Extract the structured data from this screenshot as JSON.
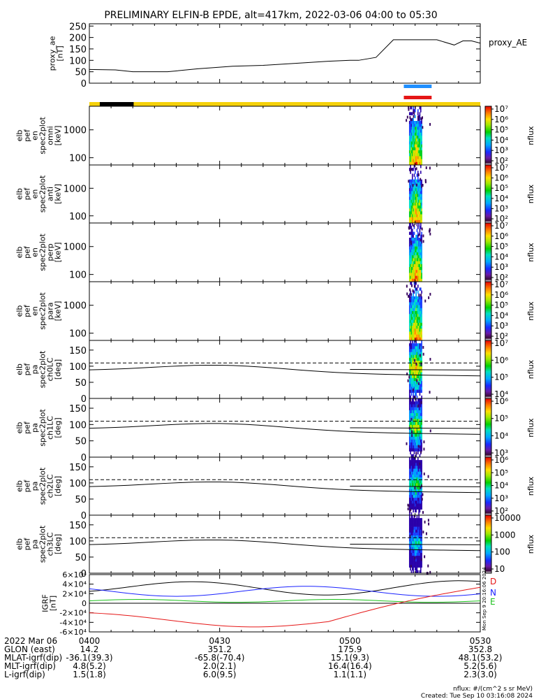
{
  "title": "PRELIMINARY ELFIN-B EPDE, alt=417km, 2022-03-06 04:00 to 05:30",
  "colors": {
    "sun_bar": "#f5d10a",
    "shadow_bar": "#000000",
    "blue_marker": "#1f8fff",
    "red_marker": "#e51616",
    "D": "#e51616",
    "N": "#1a22ff",
    "E": "#1cc11c"
  },
  "chart_data": [
    {
      "type": "line",
      "panel": "proxy_ae",
      "ylabel_lines": [
        "proxy_ae",
        "[nT]"
      ],
      "legend": "proxy_AE",
      "ylim": [
        0,
        260
      ],
      "yticks": [
        "0",
        "50",
        "100",
        "150",
        "200",
        "250"
      ],
      "series": [
        {
          "x": [
            0,
            6,
            10,
            18,
            25,
            30,
            33,
            40,
            50,
            55,
            60,
            62,
            66,
            70,
            72,
            80,
            84,
            86,
            88,
            90
          ],
          "y": [
            60,
            58,
            50,
            50,
            63,
            70,
            74,
            78,
            90,
            96,
            100,
            100,
            113,
            190,
            190,
            190,
            167,
            185,
            185,
            175
          ]
        }
      ]
    },
    {
      "type": "heatmap",
      "panel": "omni",
      "ylabel_lines": [
        "elb",
        "pef",
        "en",
        "spec2plot",
        "omni",
        "[keV]"
      ],
      "yticks": [
        "100",
        "1000"
      ],
      "cbar_ticks": [
        "10²",
        "10³",
        "10⁴",
        "10⁵",
        "10⁶",
        "10⁷"
      ],
      "cbar_label": "nflux"
    },
    {
      "type": "heatmap",
      "panel": "anti",
      "ylabel_lines": [
        "elb",
        "pef",
        "en",
        "spec2plot",
        "anti",
        "[keV]"
      ],
      "yticks": [
        "100",
        "1000"
      ],
      "cbar_ticks": [
        "10²",
        "10³",
        "10⁴",
        "10⁵",
        "10⁶",
        "10⁷"
      ],
      "cbar_label": "nflux"
    },
    {
      "type": "heatmap",
      "panel": "perp",
      "ylabel_lines": [
        "elb",
        "pef",
        "en",
        "spec2plot",
        "perp",
        "[keV]"
      ],
      "yticks": [
        "100",
        "1000"
      ],
      "cbar_ticks": [
        "10²",
        "10³",
        "10⁴",
        "10⁵",
        "10⁶",
        "10⁷"
      ],
      "cbar_label": "nflux"
    },
    {
      "type": "heatmap",
      "panel": "para",
      "ylabel_lines": [
        "elb",
        "pef",
        "en",
        "spec2plot",
        "para",
        "[keV]"
      ],
      "yticks": [
        "100",
        "1000"
      ],
      "cbar_ticks": [
        "10²",
        "10³",
        "10⁴",
        "10⁵",
        "10⁶",
        "10⁷"
      ],
      "cbar_label": "nflux"
    },
    {
      "type": "heatmap",
      "panel": "ch0LC",
      "ylabel_lines": [
        "elb",
        "pef",
        "pa",
        "spec2plot",
        "ch0LC",
        "[deg]"
      ],
      "yticks": [
        "0",
        "50",
        "100",
        "150"
      ],
      "cbar_ticks": [
        "10⁴",
        "10⁵",
        "10⁶",
        "10⁷"
      ],
      "cbar_label": "nflux"
    },
    {
      "type": "heatmap",
      "panel": "ch1LC",
      "ylabel_lines": [
        "elb",
        "pef",
        "pa",
        "spec2plot",
        "ch1LC",
        "[deg]"
      ],
      "yticks": [
        "0",
        "50",
        "100",
        "150"
      ],
      "cbar_ticks": [
        "10³",
        "10⁴",
        "10⁵",
        "10⁶"
      ],
      "cbar_label": "nflux"
    },
    {
      "type": "heatmap",
      "panel": "ch2LC",
      "ylabel_lines": [
        "elb",
        "pef",
        "pa",
        "spec2plot",
        "ch2LC",
        "[deg]"
      ],
      "yticks": [
        "0",
        "50",
        "100",
        "150"
      ],
      "cbar_ticks": [
        "10²",
        "10³",
        "10⁴",
        "10⁵",
        "10⁶"
      ],
      "cbar_label": "nflux"
    },
    {
      "type": "heatmap",
      "panel": "ch3LC",
      "ylabel_lines": [
        "elb",
        "pef",
        "pa",
        "spec2plot",
        "ch3LC",
        "[deg]"
      ],
      "yticks": [
        "0",
        "50",
        "100",
        "150"
      ],
      "cbar_ticks": [
        "10",
        "100",
        "1000",
        "10000"
      ],
      "cbar_label": "nflux"
    },
    {
      "type": "line",
      "panel": "IGRF",
      "ylabel_lines": [
        "IGRF",
        "[nT]"
      ],
      "yticks": [
        "-6×10⁴",
        "-4×10⁴",
        "-2×10⁴",
        "0",
        "2×10⁴",
        "4×10⁴",
        "6×10⁴"
      ],
      "legend": [
        "D",
        "N",
        "E"
      ],
      "side_note": "Mon Sep 9 20:16:06 2024"
    }
  ],
  "footer": {
    "rows": [
      [
        "2022 Mar 06",
        "0400",
        "0430",
        "0500",
        "0530"
      ],
      [
        "GLON (east)",
        "14.2",
        "351.2",
        "175.9",
        "352.8"
      ],
      [
        "MLAT-igrf(dip)",
        "-36.1(39.3)",
        "-65.8(-70.4)",
        "15.1(9.3)",
        "48.1(53.2)"
      ],
      [
        "MLT-igrf(dip)",
        "4.8(5.2)",
        "2.0(2.1)",
        "16.4(16.4)",
        "5.2(5.6)"
      ],
      [
        "L-igrf(dip)",
        "1.5(1.8)",
        "6.0(9.5)",
        "1.1(1.1)",
        "2.3(3.0)"
      ]
    ],
    "units": "nflux: #/(cm^2 s sr MeV)",
    "created": "Created: Tue Sep 10 03:16:08 2024"
  }
}
